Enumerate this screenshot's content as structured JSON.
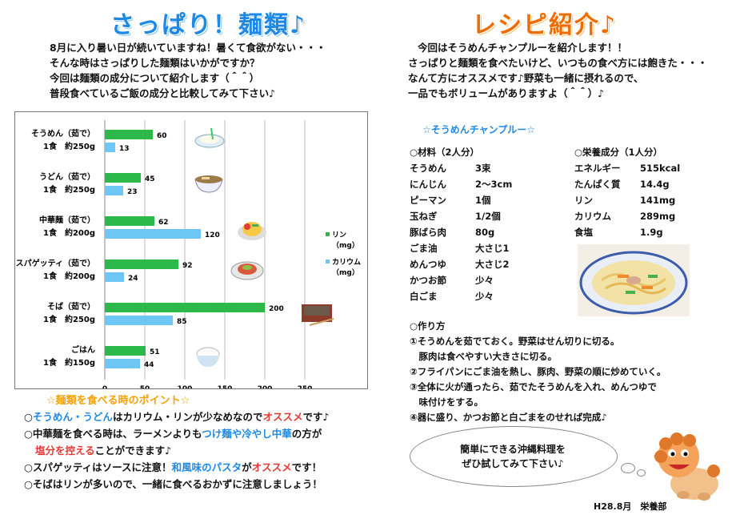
{
  "left": {
    "title": "さっぱり！麺類♪",
    "intro": [
      "8月に入り暑い日が続いていますね！暑くて食欲がない・・・",
      "そんな時はさっぱりした麺類はいかがですか？",
      "今回は麺類の成分について紹介します（＾＾）",
      "普段食べているご飯の成分と比較してみて下さい♪"
    ],
    "points_title": "☆麺類を食べる時のポイント☆",
    "points": [
      {
        "bullet": "○",
        "segments": [
          {
            "t": "そうめん・うどん",
            "c": "blue"
          },
          {
            "t": "はカリウム・リンが少なめなので",
            "c": ""
          },
          {
            "t": "オススメ",
            "c": "red"
          },
          {
            "t": "です♪",
            "c": ""
          }
        ]
      },
      {
        "bullet": "○",
        "segments": [
          {
            "t": "中華麺を食べる時は、ラーメンよりも",
            "c": ""
          },
          {
            "t": "つけ麺や冷やし中華",
            "c": "blue"
          },
          {
            "t": "の方が",
            "c": ""
          }
        ]
      },
      {
        "bullet": "",
        "segments": [
          {
            "t": "塩分を控える",
            "c": "red"
          },
          {
            "t": "ことができます♪",
            "c": ""
          }
        ]
      },
      {
        "bullet": "○",
        "segments": [
          {
            "t": "スパゲッティはソースに注意！",
            "c": ""
          },
          {
            "t": "和風味のパスタ",
            "c": "blue"
          },
          {
            "t": "が",
            "c": ""
          },
          {
            "t": "オススメ",
            "c": "red"
          },
          {
            "t": "です！",
            "c": ""
          }
        ]
      },
      {
        "bullet": "○",
        "segments": [
          {
            "t": "そばはリンが多いので、一緒に食べるおかずに注意しましょう！",
            "c": ""
          }
        ]
      }
    ]
  },
  "chart_data": {
    "type": "bar",
    "orientation": "horizontal",
    "categories": [
      {
        "name": "そうめん（茹で）",
        "portion": "1食　約250g"
      },
      {
        "name": "うどん（茹で）",
        "portion": "1食　約250g"
      },
      {
        "name": "中華麺（茹で）",
        "portion": "1食　約200g"
      },
      {
        "name": "スパゲッティ（茹で）",
        "portion": "1食　約200g"
      },
      {
        "name": "そば（茹で）",
        "portion": "1食　約250g"
      },
      {
        "name": "ごはん",
        "portion": "1食　約150g"
      }
    ],
    "series": [
      {
        "name": "リン",
        "unit": "（mg）",
        "color": "#2db84a",
        "values": [
          60,
          45,
          62,
          92,
          200,
          51
        ]
      },
      {
        "name": "カリウム",
        "unit": "（mg）",
        "color": "#6ec6f5",
        "values": [
          13,
          23,
          120,
          24,
          85,
          44
        ]
      }
    ],
    "xticks": [
      0,
      50,
      100,
      150,
      200,
      250
    ],
    "xlim": [
      0,
      250
    ],
    "legend_position": "right",
    "icons": [
      "somen-bowl-icon",
      "udon-bowl-icon",
      "hiyashi-chuka-icon",
      "spaghetti-plate-icon",
      "zaru-soba-icon",
      "rice-bowl-icon"
    ]
  },
  "right": {
    "title": "レシピ紹介♪",
    "intro": [
      "今回はそうめんチャンプルーを紹介します！！",
      "さっぱりと麺類を食べたいけど、いつもの食べ方には飽きた・・・",
      "なんて方にオススメです♪野菜も一緒に摂れるので、",
      "一品でもボリュームがありますよ（＾＾）♪"
    ],
    "recipe_title": "☆そうめんチャンプルー☆",
    "ingredients_title": "○材料（2人分）",
    "ingredients": [
      [
        "そうめん",
        "3束"
      ],
      [
        "にんじん",
        "2～3cm"
      ],
      [
        "ピーマン",
        "1個"
      ],
      [
        "玉ねぎ",
        "1/2個"
      ],
      [
        "豚ばら肉",
        "80g"
      ],
      [
        "ごま油",
        "大さじ1"
      ],
      [
        "めんつゆ",
        "大さじ2"
      ],
      [
        "かつお節",
        "少々"
      ],
      [
        "白ごま",
        "少々"
      ]
    ],
    "nutrition_title": "○栄養成分（1人分）",
    "nutrition": [
      [
        "エネルギー",
        "515kcal"
      ],
      [
        "たんぱく質",
        "14.4g"
      ],
      [
        "リン",
        "141mg"
      ],
      [
        "カリウム",
        "289mg"
      ],
      [
        "食塩",
        "1.9g"
      ]
    ],
    "steps_title": "○作り方",
    "steps": [
      "①そうめんを茹でておく。野菜はせん切りに切る。",
      "　豚肉は食べやすい大きさに切る。",
      "②フライパンにごま油を熱し、豚肉、野菜の順に炒めていく。",
      "③全体に火が通ったら、茹でたそうめんを入れ、めんつゆで",
      "　味付けをする。",
      "④器に盛り、かつお節と白ごまをのせれば完成♪"
    ],
    "bubble": [
      "簡単にできる沖縄料理を",
      "ぜひ試してみて下さい♪"
    ],
    "footer": "H28.8月　栄養部"
  }
}
